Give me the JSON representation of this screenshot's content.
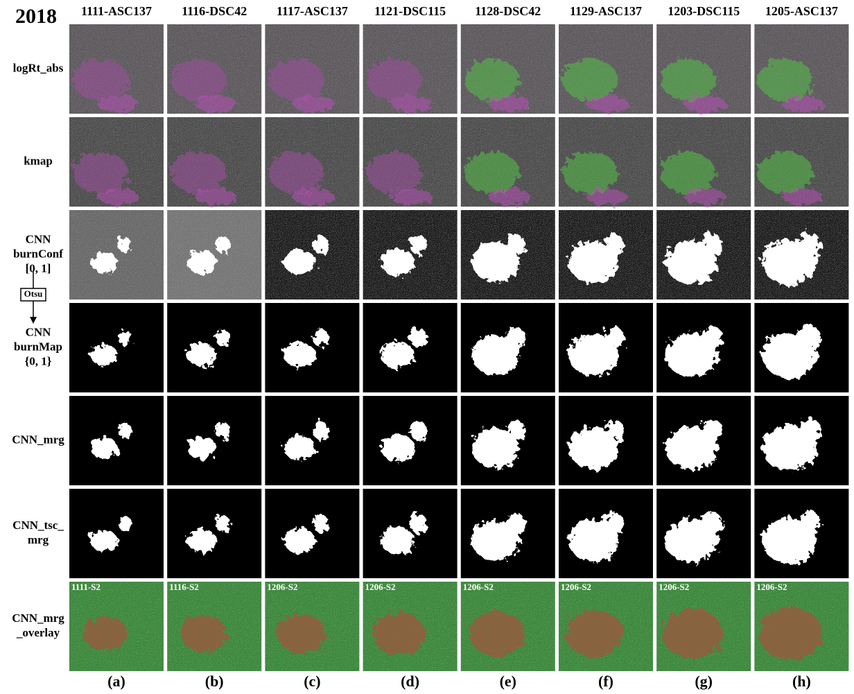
{
  "header": {
    "year": "2018",
    "columns": [
      "1111-ASC137",
      "1116-DSC42",
      "1117-ASC137",
      "1121-DSC115",
      "1128-DSC42",
      "1129-ASC137",
      "1203-DSC115",
      "1205-ASC137"
    ]
  },
  "rows": [
    {
      "label": [
        "logRt_abs"
      ]
    },
    {
      "label": [
        "kmap"
      ]
    },
    {
      "label": [
        "CNN",
        "burnConf",
        "[0, 1]"
      ]
    },
    {
      "label": [
        "CNN",
        "burnMap",
        "{0, 1}"
      ]
    },
    {
      "label": [
        "CNN_mrg"
      ]
    },
    {
      "label": [
        "CNN_tsc_",
        "mrg"
      ]
    },
    {
      "label": [
        "CNN_mrg",
        "_overlay"
      ]
    }
  ],
  "otsu": "Otsu",
  "overlay_tags": [
    "1111-S2",
    "1116-S2",
    "1206-S2",
    "1206-S2",
    "1206-S2",
    "1206-S2",
    "1206-S2",
    "1206-S2"
  ],
  "panel_letters": [
    "(a)",
    "(b)",
    "(c)",
    "(d)",
    "(e)",
    "(f)",
    "(g)",
    "(h)"
  ]
}
